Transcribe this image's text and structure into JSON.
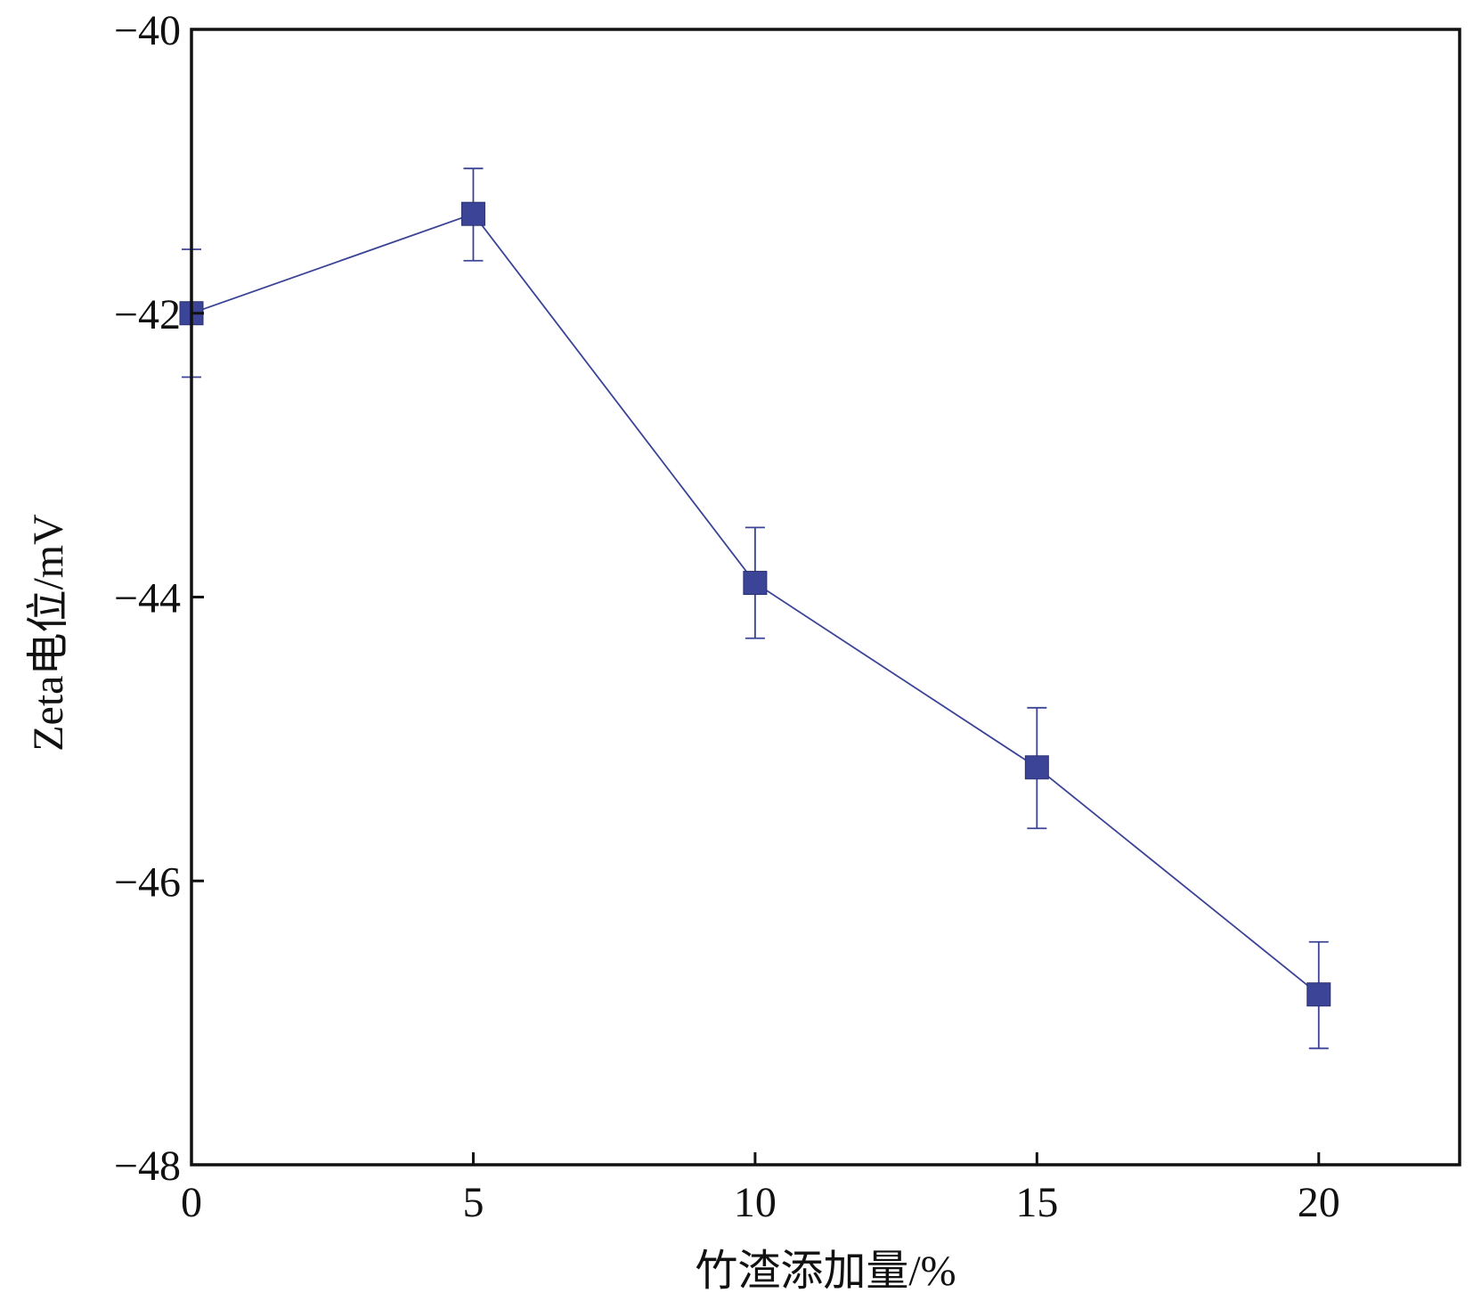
{
  "chart_data": {
    "type": "line",
    "xlabel": "竹渣添加量/%",
    "ylabel": "Zeta电位/mV",
    "xlim": [
      0,
      22.5
    ],
    "ylim": [
      -48,
      -40
    ],
    "x_ticks": [
      0,
      5,
      10,
      15,
      20
    ],
    "x_tick_labels": [
      "0",
      "5",
      "10",
      "15",
      "20"
    ],
    "y_ticks": [
      -40,
      -42,
      -44,
      -46,
      -48
    ],
    "y_tick_labels": [
      "−40",
      "−42",
      "−44",
      "−46",
      "−48"
    ],
    "grid": false,
    "series": [
      {
        "x": [
          0,
          5,
          10,
          15,
          20
        ],
        "y": [
          -42.0,
          -41.3,
          -43.9,
          -45.2,
          -46.8
        ],
        "error": [
          [
            -42.45,
            -41.55
          ],
          [
            -41.63,
            -40.98
          ],
          [
            -44.29,
            -43.51
          ],
          [
            -45.63,
            -44.78
          ],
          [
            -47.18,
            -46.43
          ]
        ],
        "color": "#3b4496",
        "marker": "square"
      }
    ]
  }
}
